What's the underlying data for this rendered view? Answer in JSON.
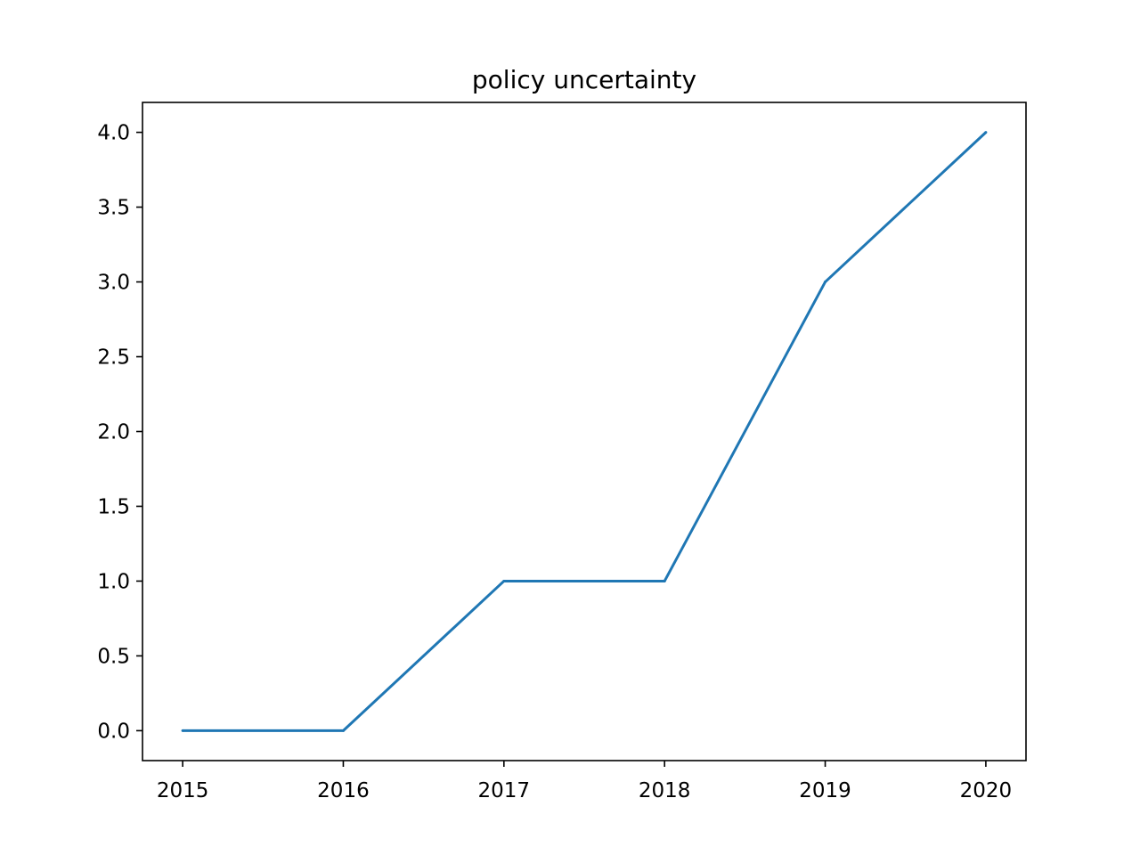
{
  "chart_data": {
    "type": "line",
    "title": "policy uncertainty",
    "xlabel": "",
    "ylabel": "",
    "x": [
      2015,
      2016,
      2017,
      2018,
      2019,
      2020
    ],
    "series": [
      {
        "values": [
          0,
          0,
          1,
          1,
          3,
          4
        ],
        "color": "#1f77b4"
      }
    ],
    "x_ticks": [
      "2015",
      "2016",
      "2017",
      "2018",
      "2019",
      "2020"
    ],
    "y_ticks": [
      "0.0",
      "0.5",
      "1.0",
      "1.5",
      "2.0",
      "2.5",
      "3.0",
      "3.5",
      "4.0"
    ],
    "xlim": [
      2014.75,
      2020.25
    ],
    "ylim": [
      -0.2,
      4.2
    ],
    "grid": false,
    "legend": "none"
  }
}
